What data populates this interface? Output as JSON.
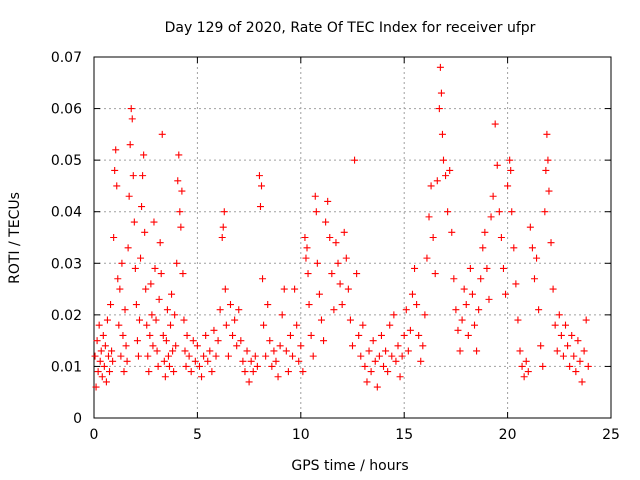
{
  "chart_data": {
    "type": "scatter",
    "title": "Day 129 of 2020, Rate Of TEC Index for receiver ufpr",
    "xlabel": "GPS time / hours",
    "ylabel": "ROTI / TECUs",
    "xlim": [
      0,
      25
    ],
    "ylim": [
      0,
      0.07
    ],
    "x_ticks": [
      "0",
      "5",
      "10",
      "15",
      "20",
      "25"
    ],
    "y_ticks": [
      "0",
      "0.01",
      "0.02",
      "0.03",
      "0.04",
      "0.05",
      "0.06",
      "0.07"
    ],
    "grid": true,
    "marker": "+",
    "color": "#ff0000",
    "series": [
      {
        "points": [
          [
            0.05,
            0.012
          ],
          [
            0.1,
            0.006
          ],
          [
            0.15,
            0.015
          ],
          [
            0.2,
            0.009
          ],
          [
            0.25,
            0.018
          ],
          [
            0.3,
            0.011
          ],
          [
            0.35,
            0.013
          ],
          [
            0.4,
            0.008
          ],
          [
            0.45,
            0.016
          ],
          [
            0.5,
            0.01
          ],
          [
            0.55,
            0.014
          ],
          [
            0.6,
            0.007
          ],
          [
            0.65,
            0.019
          ],
          [
            0.7,
            0.012
          ],
          [
            0.75,
            0.009
          ],
          [
            0.8,
            0.022
          ],
          [
            0.85,
            0.013
          ],
          [
            0.9,
            0.011
          ],
          [
            0.95,
            0.035
          ],
          [
            1.0,
            0.048
          ],
          [
            1.05,
            0.052
          ],
          [
            1.1,
            0.045
          ],
          [
            1.15,
            0.027
          ],
          [
            1.2,
            0.018
          ],
          [
            1.25,
            0.025
          ],
          [
            1.3,
            0.012
          ],
          [
            1.35,
            0.03
          ],
          [
            1.4,
            0.016
          ],
          [
            1.45,
            0.009
          ],
          [
            1.5,
            0.021
          ],
          [
            1.55,
            0.014
          ],
          [
            1.6,
            0.011
          ],
          [
            1.65,
            0.033
          ],
          [
            1.7,
            0.043
          ],
          [
            1.75,
            0.053
          ],
          [
            1.8,
            0.06
          ],
          [
            1.85,
            0.058
          ],
          [
            1.9,
            0.047
          ],
          [
            1.95,
            0.038
          ],
          [
            2.0,
            0.029
          ],
          [
            2.05,
            0.022
          ],
          [
            2.1,
            0.015
          ],
          [
            2.15,
            0.012
          ],
          [
            2.2,
            0.019
          ],
          [
            2.25,
            0.031
          ],
          [
            2.3,
            0.041
          ],
          [
            2.35,
            0.047
          ],
          [
            2.4,
            0.051
          ],
          [
            2.45,
            0.036
          ],
          [
            2.5,
            0.025
          ],
          [
            2.55,
            0.018
          ],
          [
            2.6,
            0.012
          ],
          [
            2.65,
            0.009
          ],
          [
            2.7,
            0.016
          ],
          [
            2.75,
            0.026
          ],
          [
            2.8,
            0.02
          ],
          [
            2.85,
            0.014
          ],
          [
            2.9,
            0.038
          ],
          [
            2.95,
            0.029
          ],
          [
            3.0,
            0.019
          ],
          [
            3.05,
            0.013
          ],
          [
            3.1,
            0.01
          ],
          [
            3.15,
            0.023
          ],
          [
            3.2,
            0.034
          ],
          [
            3.25,
            0.028
          ],
          [
            3.3,
            0.055
          ],
          [
            3.35,
            0.016
          ],
          [
            3.4,
            0.011
          ],
          [
            3.45,
            0.008
          ],
          [
            3.5,
            0.015
          ],
          [
            3.55,
            0.021
          ],
          [
            3.6,
            0.012
          ],
          [
            3.65,
            0.01
          ],
          [
            3.7,
            0.018
          ],
          [
            3.75,
            0.024
          ],
          [
            3.8,
            0.013
          ],
          [
            3.85,
            0.009
          ],
          [
            3.9,
            0.02
          ],
          [
            3.95,
            0.014
          ],
          [
            4.0,
            0.03
          ],
          [
            4.05,
            0.046
          ],
          [
            4.1,
            0.051
          ],
          [
            4.15,
            0.04
          ],
          [
            4.2,
            0.037
          ],
          [
            4.25,
            0.044
          ],
          [
            4.3,
            0.028
          ],
          [
            4.35,
            0.019
          ],
          [
            4.4,
            0.013
          ],
          [
            4.45,
            0.01
          ],
          [
            4.5,
            0.016
          ],
          [
            4.6,
            0.012
          ],
          [
            4.7,
            0.009
          ],
          [
            4.8,
            0.015
          ],
          [
            4.9,
            0.011
          ],
          [
            5.0,
            0.014
          ],
          [
            5.1,
            0.01
          ],
          [
            5.2,
            0.008
          ],
          [
            5.3,
            0.012
          ],
          [
            5.4,
            0.016
          ],
          [
            5.5,
            0.011
          ],
          [
            5.6,
            0.013
          ],
          [
            5.7,
            0.009
          ],
          [
            5.8,
            0.017
          ],
          [
            5.9,
            0.012
          ],
          [
            6.0,
            0.015
          ],
          [
            6.1,
            0.021
          ],
          [
            6.2,
            0.035
          ],
          [
            6.25,
            0.037
          ],
          [
            6.3,
            0.04
          ],
          [
            6.35,
            0.025
          ],
          [
            6.4,
            0.018
          ],
          [
            6.5,
            0.012
          ],
          [
            6.6,
            0.022
          ],
          [
            6.7,
            0.016
          ],
          [
            6.8,
            0.019
          ],
          [
            6.9,
            0.014
          ],
          [
            7.0,
            0.021
          ],
          [
            7.1,
            0.015
          ],
          [
            7.2,
            0.011
          ],
          [
            7.3,
            0.009
          ],
          [
            7.4,
            0.013
          ],
          [
            7.5,
            0.007
          ],
          [
            7.6,
            0.011
          ],
          [
            7.7,
            0.009
          ],
          [
            7.8,
            0.012
          ],
          [
            7.9,
            0.01
          ],
          [
            8.0,
            0.047
          ],
          [
            8.05,
            0.041
          ],
          [
            8.1,
            0.045
          ],
          [
            8.15,
            0.027
          ],
          [
            8.2,
            0.018
          ],
          [
            8.3,
            0.012
          ],
          [
            8.4,
            0.022
          ],
          [
            8.5,
            0.015
          ],
          [
            8.6,
            0.01
          ],
          [
            8.7,
            0.013
          ],
          [
            8.8,
            0.011
          ],
          [
            8.9,
            0.008
          ],
          [
            9.0,
            0.014
          ],
          [
            9.1,
            0.02
          ],
          [
            9.2,
            0.025
          ],
          [
            9.3,
            0.013
          ],
          [
            9.4,
            0.009
          ],
          [
            9.5,
            0.016
          ],
          [
            9.6,
            0.012
          ],
          [
            9.7,
            0.025
          ],
          [
            9.8,
            0.018
          ],
          [
            9.9,
            0.011
          ],
          [
            10.0,
            0.014
          ],
          [
            10.1,
            0.009
          ],
          [
            10.2,
            0.035
          ],
          [
            10.25,
            0.031
          ],
          [
            10.3,
            0.033
          ],
          [
            10.35,
            0.028
          ],
          [
            10.4,
            0.022
          ],
          [
            10.5,
            0.016
          ],
          [
            10.6,
            0.012
          ],
          [
            10.7,
            0.043
          ],
          [
            10.75,
            0.04
          ],
          [
            10.8,
            0.03
          ],
          [
            10.9,
            0.024
          ],
          [
            11.0,
            0.019
          ],
          [
            11.1,
            0.015
          ],
          [
            11.2,
            0.038
          ],
          [
            11.3,
            0.042
          ],
          [
            11.4,
            0.035
          ],
          [
            11.5,
            0.028
          ],
          [
            11.6,
            0.021
          ],
          [
            11.7,
            0.034
          ],
          [
            11.8,
            0.03
          ],
          [
            11.9,
            0.026
          ],
          [
            12.0,
            0.022
          ],
          [
            12.1,
            0.036
          ],
          [
            12.2,
            0.031
          ],
          [
            12.3,
            0.025
          ],
          [
            12.4,
            0.019
          ],
          [
            12.5,
            0.014
          ],
          [
            12.6,
            0.05
          ],
          [
            12.7,
            0.028
          ],
          [
            12.8,
            0.016
          ],
          [
            12.9,
            0.012
          ],
          [
            13.0,
            0.018
          ],
          [
            13.1,
            0.01
          ],
          [
            13.2,
            0.007
          ],
          [
            13.3,
            0.013
          ],
          [
            13.4,
            0.009
          ],
          [
            13.5,
            0.015
          ],
          [
            13.6,
            0.011
          ],
          [
            13.7,
            0.006
          ],
          [
            13.8,
            0.012
          ],
          [
            13.9,
            0.016
          ],
          [
            14.0,
            0.01
          ],
          [
            14.1,
            0.013
          ],
          [
            14.2,
            0.009
          ],
          [
            14.3,
            0.018
          ],
          [
            14.4,
            0.012
          ],
          [
            14.5,
            0.02
          ],
          [
            14.6,
            0.011
          ],
          [
            14.7,
            0.014
          ],
          [
            14.8,
            0.008
          ],
          [
            14.9,
            0.012
          ],
          [
            15.0,
            0.016
          ],
          [
            15.1,
            0.021
          ],
          [
            15.2,
            0.013
          ],
          [
            15.3,
            0.017
          ],
          [
            15.4,
            0.024
          ],
          [
            15.5,
            0.029
          ],
          [
            15.6,
            0.022
          ],
          [
            15.7,
            0.016
          ],
          [
            15.8,
            0.011
          ],
          [
            15.9,
            0.014
          ],
          [
            16.0,
            0.02
          ],
          [
            16.1,
            0.031
          ],
          [
            16.2,
            0.039
          ],
          [
            16.3,
            0.045
          ],
          [
            16.4,
            0.035
          ],
          [
            16.5,
            0.028
          ],
          [
            16.6,
            0.046
          ],
          [
            16.7,
            0.06
          ],
          [
            16.75,
            0.068
          ],
          [
            16.8,
            0.063
          ],
          [
            16.85,
            0.055
          ],
          [
            16.9,
            0.05
          ],
          [
            17.0,
            0.047
          ],
          [
            17.1,
            0.04
          ],
          [
            17.2,
            0.048
          ],
          [
            17.3,
            0.036
          ],
          [
            17.4,
            0.027
          ],
          [
            17.5,
            0.021
          ],
          [
            17.6,
            0.017
          ],
          [
            17.7,
            0.013
          ],
          [
            17.8,
            0.019
          ],
          [
            17.9,
            0.025
          ],
          [
            18.0,
            0.022
          ],
          [
            18.1,
            0.016
          ],
          [
            18.2,
            0.029
          ],
          [
            18.3,
            0.024
          ],
          [
            18.4,
            0.018
          ],
          [
            18.5,
            0.013
          ],
          [
            18.6,
            0.021
          ],
          [
            18.7,
            0.027
          ],
          [
            18.8,
            0.033
          ],
          [
            18.9,
            0.036
          ],
          [
            19.0,
            0.029
          ],
          [
            19.1,
            0.023
          ],
          [
            19.2,
            0.039
          ],
          [
            19.3,
            0.043
          ],
          [
            19.4,
            0.057
          ],
          [
            19.5,
            0.049
          ],
          [
            19.6,
            0.04
          ],
          [
            19.7,
            0.035
          ],
          [
            19.8,
            0.029
          ],
          [
            19.9,
            0.024
          ],
          [
            20.0,
            0.045
          ],
          [
            20.1,
            0.05
          ],
          [
            20.15,
            0.048
          ],
          [
            20.2,
            0.04
          ],
          [
            20.3,
            0.033
          ],
          [
            20.4,
            0.026
          ],
          [
            20.5,
            0.019
          ],
          [
            20.6,
            0.013
          ],
          [
            20.7,
            0.01
          ],
          [
            20.8,
            0.008
          ],
          [
            20.9,
            0.011
          ],
          [
            21.0,
            0.009
          ],
          [
            21.1,
            0.037
          ],
          [
            21.2,
            0.033
          ],
          [
            21.3,
            0.027
          ],
          [
            21.4,
            0.031
          ],
          [
            21.5,
            0.021
          ],
          [
            21.6,
            0.014
          ],
          [
            21.7,
            0.01
          ],
          [
            21.8,
            0.04
          ],
          [
            21.85,
            0.048
          ],
          [
            21.9,
            0.055
          ],
          [
            21.95,
            0.05
          ],
          [
            22.0,
            0.044
          ],
          [
            22.1,
            0.034
          ],
          [
            22.2,
            0.025
          ],
          [
            22.3,
            0.018
          ],
          [
            22.4,
            0.013
          ],
          [
            22.5,
            0.02
          ],
          [
            22.6,
            0.016
          ],
          [
            22.7,
            0.012
          ],
          [
            22.8,
            0.018
          ],
          [
            22.9,
            0.014
          ],
          [
            23.0,
            0.01
          ],
          [
            23.1,
            0.016
          ],
          [
            23.2,
            0.012
          ],
          [
            23.3,
            0.009
          ],
          [
            23.4,
            0.015
          ],
          [
            23.5,
            0.011
          ],
          [
            23.6,
            0.007
          ],
          [
            23.7,
            0.013
          ],
          [
            23.8,
            0.019
          ],
          [
            23.9,
            0.01
          ]
        ]
      }
    ]
  }
}
